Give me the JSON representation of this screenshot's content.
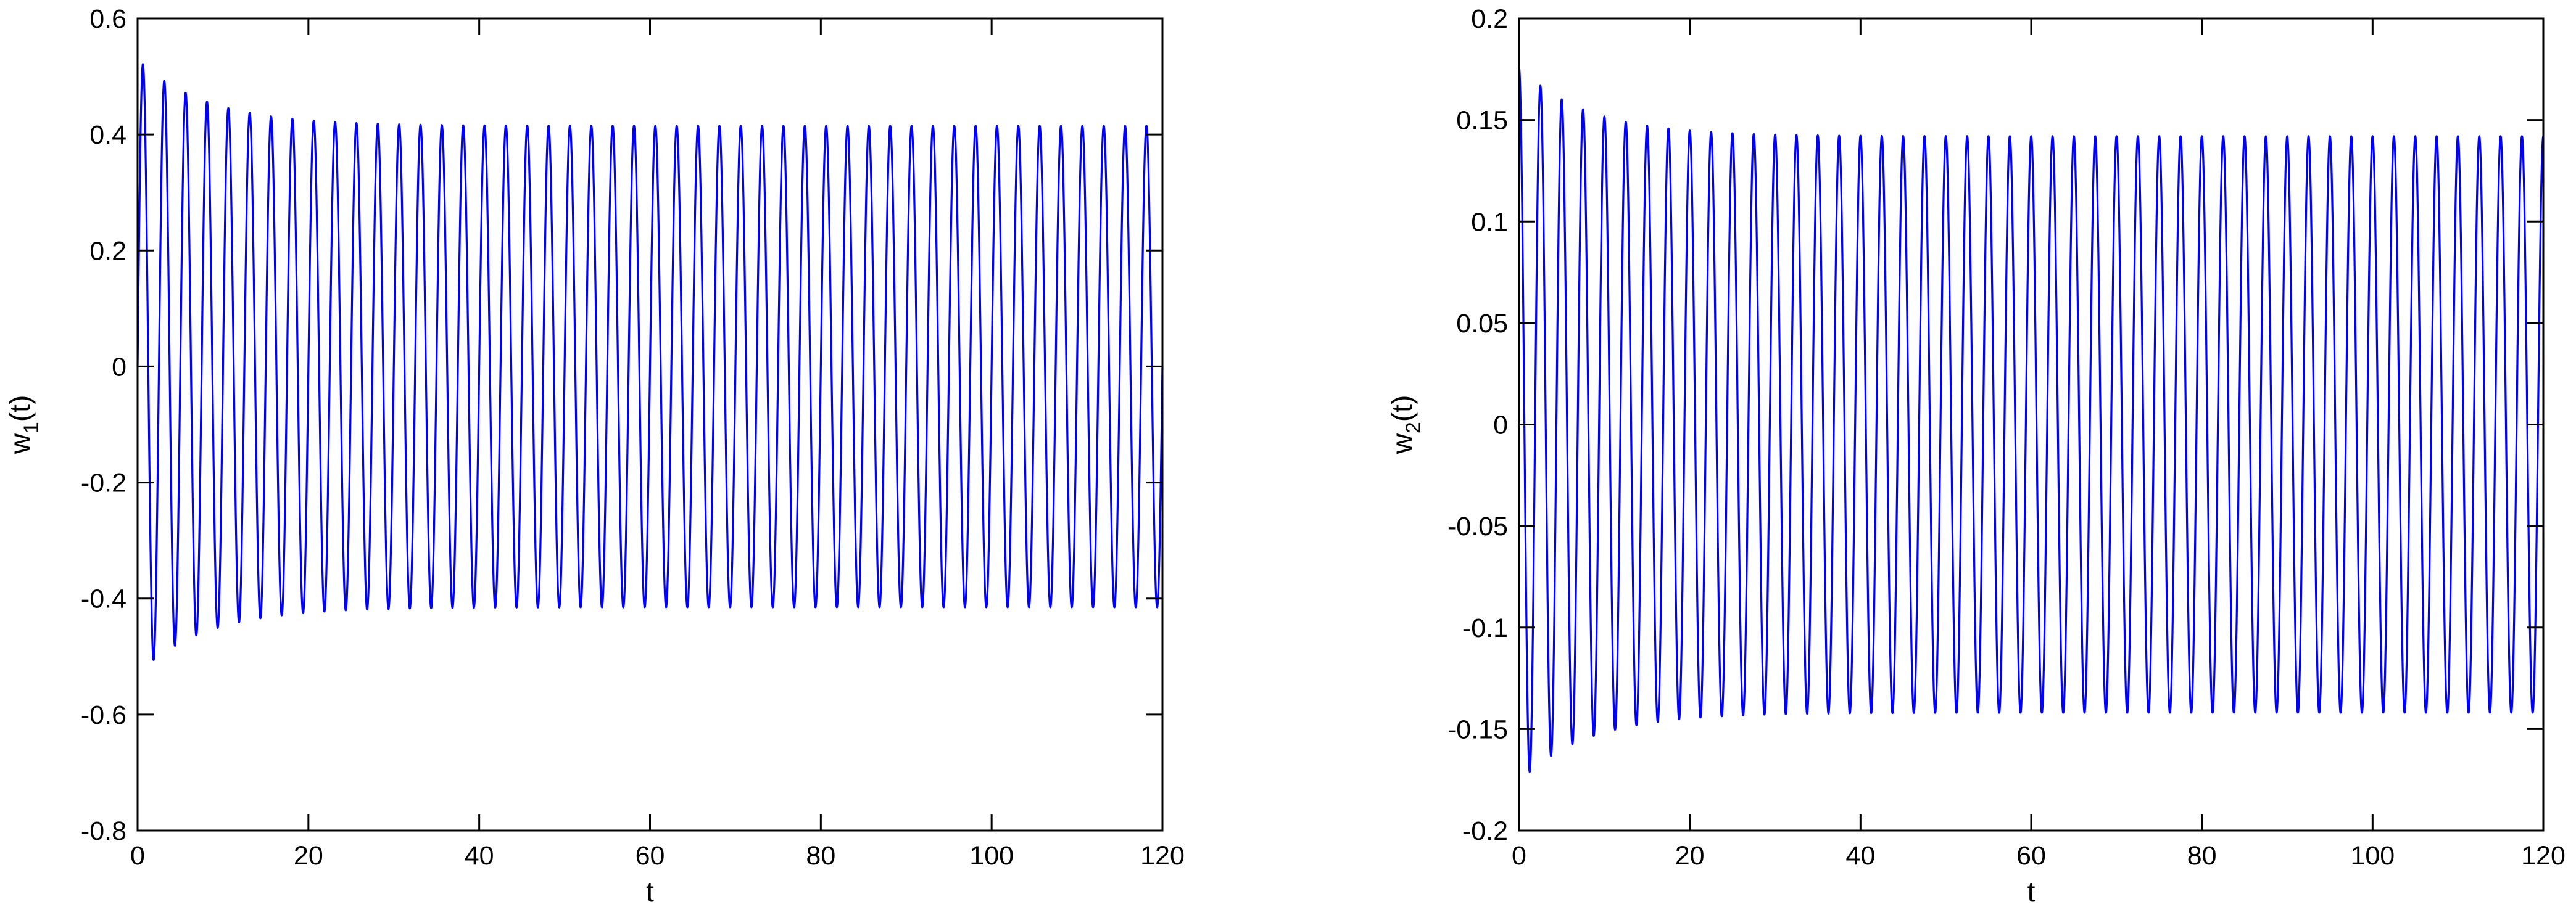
{
  "chart_data": [
    {
      "type": "line",
      "title": "",
      "xlabel": "t",
      "ylabel_main": "w",
      "ylabel_sub": "1",
      "ylabel_tail": "(t)",
      "xlim": [
        0,
        120
      ],
      "ylim": [
        -0.8,
        0.6
      ],
      "xticks": [
        "0",
        "20",
        "40",
        "60",
        "80",
        "100",
        "120"
      ],
      "yticks": [
        "-0.8",
        "-0.6",
        "-0.4",
        "-0.2",
        "0",
        "0.2",
        "0.4",
        "0.6"
      ],
      "grid": false,
      "color": "#0000ff",
      "signal": {
        "description": "damped oscillation settling to a steady limit cycle",
        "period": 2.5,
        "start_value": 0.0,
        "first_max": 0.53,
        "first_min": -0.51,
        "steady_amplitude": 0.415,
        "decay_time_constant": 8.0,
        "t_end": 120
      },
      "x": [
        0,
        0.6,
        1.9,
        3.1,
        4.4,
        5.6,
        6.9,
        8.1,
        10.6,
        13.1,
        15.6,
        18.1,
        20.6,
        25.6,
        30.6,
        40.6,
        60.6,
        80.6,
        100.6,
        118.1,
        119.4,
        120
      ],
      "y": [
        0.0,
        0.53,
        -0.51,
        0.5,
        -0.48,
        0.475,
        -0.47,
        0.46,
        0.45,
        0.44,
        0.435,
        0.43,
        0.425,
        0.42,
        0.418,
        0.416,
        0.415,
        0.415,
        0.415,
        0.415,
        -0.415,
        -0.3
      ]
    },
    {
      "type": "line",
      "title": "",
      "xlabel": "t",
      "ylabel_main": "w",
      "ylabel_sub": "2",
      "ylabel_tail": "(t)",
      "xlim": [
        0,
        120
      ],
      "ylim": [
        -0.2,
        0.2
      ],
      "xticks": [
        "0",
        "20",
        "40",
        "60",
        "80",
        "100",
        "120"
      ],
      "yticks": [
        "-0.2",
        "-0.15",
        "-0.1",
        "-0.05",
        "0",
        "0.05",
        "0.1",
        "0.15",
        "0.2"
      ],
      "grid": false,
      "color": "#0000ff",
      "signal": {
        "description": "damped oscillation settling to a steady limit cycle",
        "period": 2.5,
        "start_value": 0.2,
        "first_max": 0.176,
        "first_min": -0.168,
        "steady_amplitude": 0.142,
        "decay_time_constant": 8.0,
        "t_end": 120
      },
      "x": [
        0,
        1.2,
        2.5,
        3.7,
        5.0,
        6.2,
        7.5,
        10.0,
        12.5,
        15.0,
        17.5,
        20.0,
        25.0,
        30.0,
        40.0,
        60.0,
        80.0,
        100.0,
        118.7,
        120
      ],
      "y": [
        0.2,
        -0.165,
        0.176,
        -0.168,
        0.166,
        -0.165,
        0.16,
        0.155,
        0.152,
        0.15,
        0.148,
        0.147,
        0.145,
        0.143,
        0.142,
        0.142,
        0.142,
        0.142,
        -0.142,
        0.01
      ]
    }
  ]
}
